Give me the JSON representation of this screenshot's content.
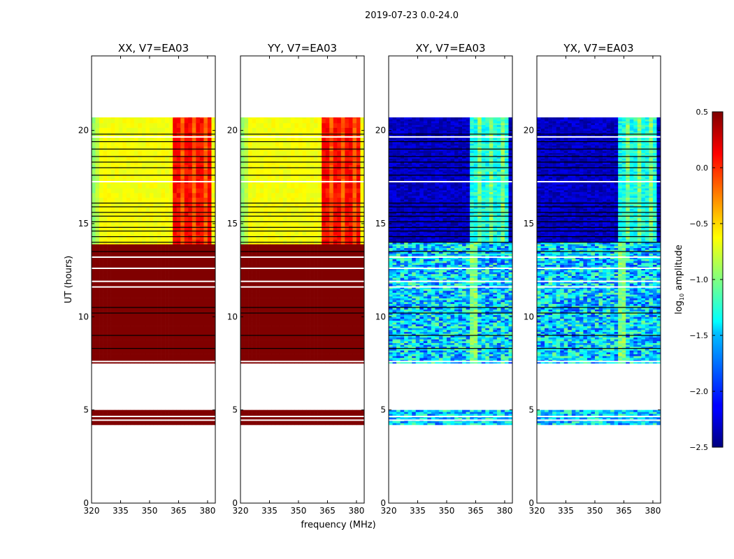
{
  "chart_data": {
    "type": "heatmap",
    "title": "2019-07-23 0.0-24.0",
    "xlabel": "frequency (MHz)",
    "ylabel": "UT (hours)",
    "xlim": [
      320,
      384
    ],
    "ylim": [
      0,
      24
    ],
    "xticks": [
      "320",
      "335",
      "350",
      "365",
      "380"
    ],
    "xtick_values": [
      320,
      335,
      350,
      365,
      380
    ],
    "yticks": [
      "0",
      "5",
      "10",
      "15",
      "20"
    ],
    "ytick_values": [
      0,
      5,
      10,
      15,
      20
    ],
    "colormap": "jet",
    "colorbar": {
      "label": "log10 amplitude",
      "label_main": "log",
      "label_sub": "10",
      "label_rest": " amplitude",
      "range": [
        -2.5,
        0.5
      ],
      "ticks": [
        "0.5",
        "0.0",
        "−0.5",
        "−1.0",
        "−1.5",
        "−2.0",
        "−2.5"
      ],
      "tick_values": [
        0.5,
        0.0,
        -0.5,
        -1.0,
        -1.5,
        -2.0,
        -2.5
      ]
    },
    "panels": [
      {
        "title": "XX, V7=EA03",
        "kind": "parallel"
      },
      {
        "title": "YY, V7=EA03",
        "kind": "parallel"
      },
      {
        "title": "XY, V7=EA03",
        "kind": "cross"
      },
      {
        "title": "YX, V7=EA03",
        "kind": "cross"
      }
    ],
    "parallel_bands_hours": [
      {
        "t": [
          4.2,
          5.0
        ],
        "base": 0.5
      },
      {
        "t": [
          7.5,
          13.9
        ],
        "base": 0.5
      },
      {
        "t": [
          13.9,
          20.7
        ],
        "base": -0.65,
        "hot_mhz": [
          362,
          382
        ],
        "hot": 0.1
      }
    ],
    "cross_bands_hours": [
      {
        "t": [
          4.2,
          5.0
        ],
        "base": -1.5,
        "noise": 0.45
      },
      {
        "t": [
          7.5,
          14.0
        ],
        "base": -1.5,
        "noise": 0.5,
        "hot_mhz": [
          362,
          366
        ],
        "hot": -1.0
      },
      {
        "t": [
          14.0,
          20.7
        ],
        "base": -2.3,
        "noise": 0.15,
        "hot_mhz": [
          362,
          382
        ],
        "hot": -1.3
      }
    ],
    "white_gaps_hours": [
      4.45,
      4.65,
      7.6,
      11.6,
      11.9,
      12.6,
      13.2,
      17.25,
      19.65
    ],
    "flagged_rows_hours": [
      8.3,
      9.0,
      10.2,
      10.5,
      13.5,
      14.0,
      14.3,
      14.6,
      14.8,
      15.1,
      15.4,
      15.6,
      15.9,
      16.1,
      17.6,
      18.0,
      18.3,
      18.6,
      19.0,
      19.4,
      19.8
    ]
  }
}
